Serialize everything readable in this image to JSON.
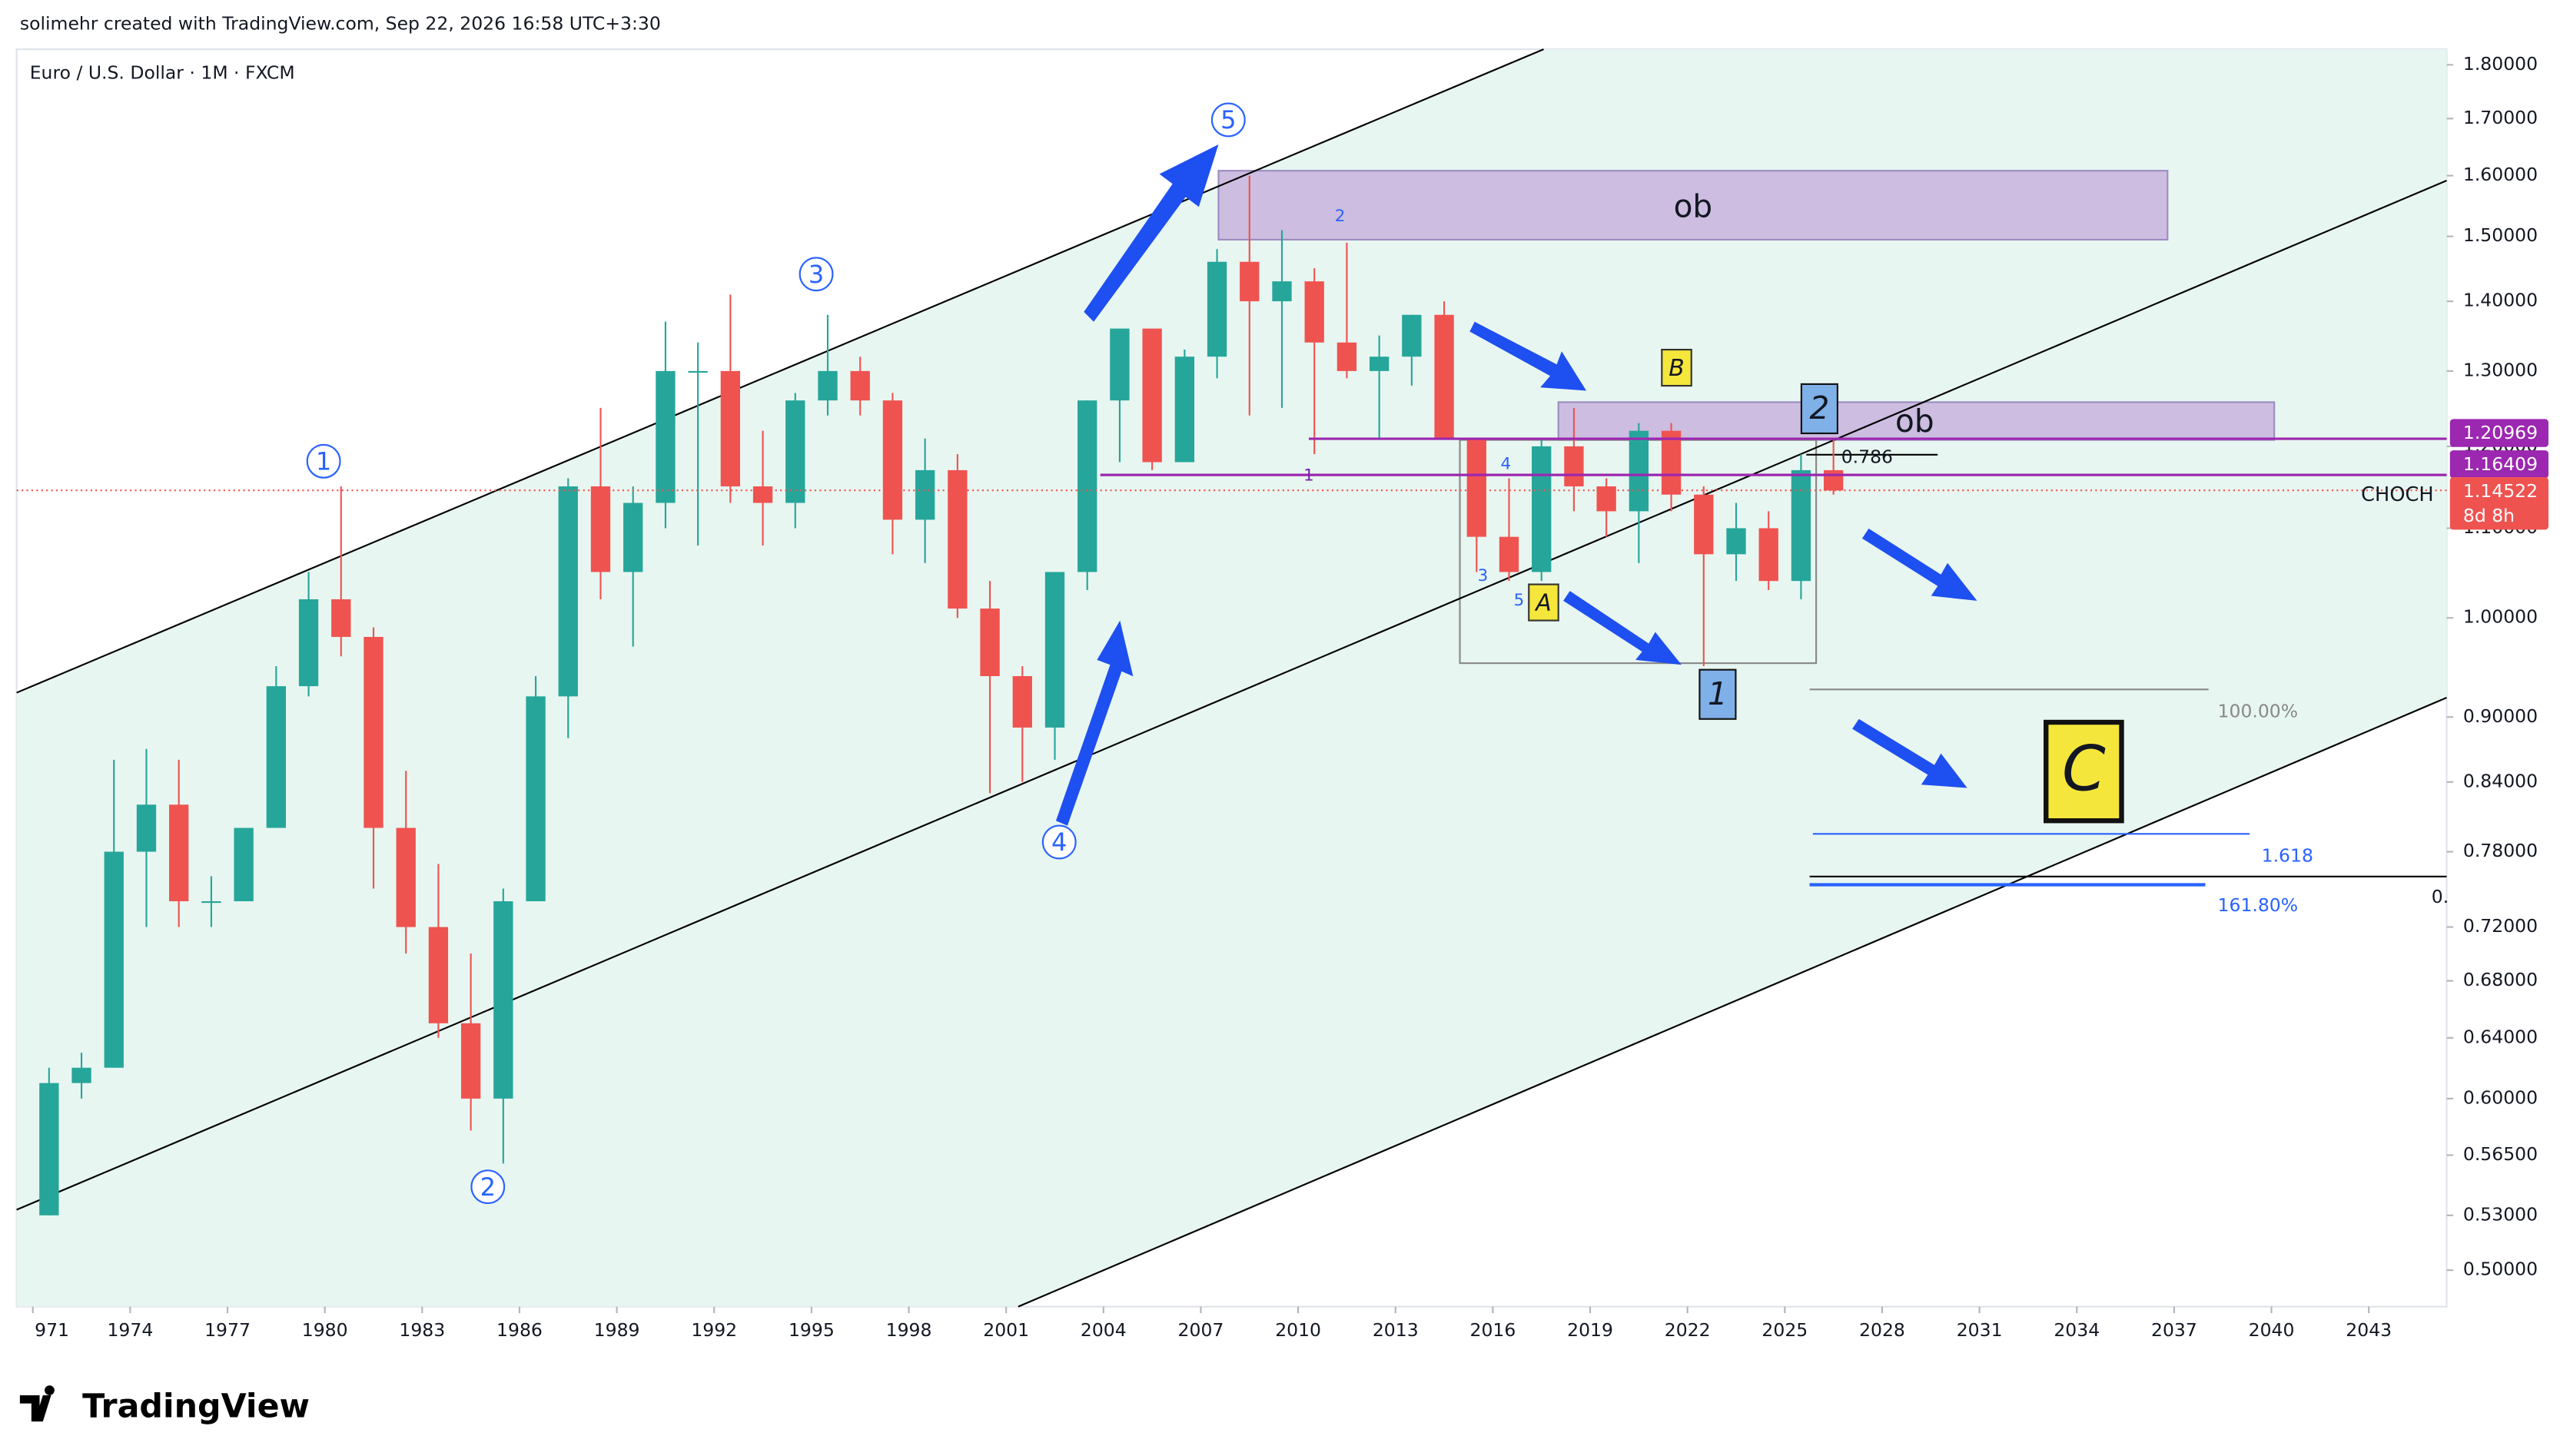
{
  "header": {
    "byline": "solimehr created with TradingView.com, Sep 22, 2026 16:58 UTC+3:30",
    "symbol": "Euro / U.S. Dollar · 1M · FXCM"
  },
  "brand": "TradingView",
  "chart_data": {
    "type": "candlestick",
    "log_scale": true,
    "up_color": "#26a69a",
    "down_color": "#ef5350",
    "x": [
      1971,
      1972,
      1973,
      1974,
      1975,
      1976,
      1977,
      1978,
      1979,
      1980,
      1981,
      1982,
      1983,
      1984,
      1985,
      1986,
      1987,
      1988,
      1989,
      1990,
      1991,
      1992,
      1993,
      1994,
      1995,
      1996,
      1997,
      1998,
      1999,
      2000,
      2001,
      2002,
      2003,
      2004,
      2005,
      2006,
      2007,
      2008,
      2009,
      2010,
      2011,
      2012,
      2013,
      2014,
      2015,
      2016,
      2017,
      2018,
      2019,
      2020,
      2021,
      2022,
      2023,
      2024,
      2025,
      2026
    ],
    "open": [
      0.53,
      0.61,
      0.62,
      0.78,
      0.82,
      0.74,
      0.74,
      0.8,
      0.93,
      1.02,
      0.98,
      0.8,
      0.72,
      0.65,
      0.6,
      0.74,
      0.92,
      1.15,
      1.05,
      1.13,
      1.3,
      1.3,
      1.15,
      1.13,
      1.26,
      1.3,
      1.26,
      1.11,
      1.17,
      1.01,
      0.94,
      0.89,
      1.05,
      1.26,
      1.36,
      1.18,
      1.32,
      1.46,
      1.4,
      1.43,
      1.34,
      1.3,
      1.32,
      1.38,
      1.21,
      1.09,
      1.05,
      1.2,
      1.15,
      1.12,
      1.22,
      1.14,
      1.07,
      1.1,
      1.04,
      1.17
    ],
    "high": [
      0.62,
      0.63,
      0.86,
      0.87,
      0.86,
      0.76,
      0.8,
      0.95,
      1.05,
      1.15,
      0.99,
      0.85,
      0.77,
      0.7,
      0.75,
      0.94,
      1.16,
      1.25,
      1.15,
      1.37,
      1.34,
      1.41,
      1.22,
      1.27,
      1.38,
      1.32,
      1.27,
      1.21,
      1.19,
      1.04,
      0.95,
      1.05,
      1.26,
      1.36,
      1.36,
      1.33,
      1.48,
      1.6,
      1.51,
      1.45,
      1.49,
      1.35,
      1.38,
      1.4,
      1.21,
      1.16,
      1.21,
      1.25,
      1.16,
      1.23,
      1.23,
      1.15,
      1.13,
      1.12,
      1.19,
      1.21
    ],
    "low": [
      0.53,
      0.6,
      0.62,
      0.72,
      0.72,
      0.72,
      0.74,
      0.8,
      0.92,
      0.96,
      0.75,
      0.7,
      0.64,
      0.58,
      0.56,
      0.74,
      0.88,
      1.02,
      0.97,
      1.1,
      1.08,
      1.13,
      1.08,
      1.1,
      1.24,
      1.24,
      1.07,
      1.06,
      1.0,
      0.83,
      0.84,
      0.86,
      1.03,
      1.18,
      1.17,
      1.18,
      1.29,
      1.24,
      1.25,
      1.19,
      1.29,
      1.21,
      1.28,
      1.21,
      1.05,
      1.04,
      1.04,
      1.12,
      1.09,
      1.06,
      1.12,
      0.95,
      1.04,
      1.03,
      1.02,
      1.14
    ],
    "close": [
      0.61,
      0.62,
      0.78,
      0.82,
      0.74,
      0.74,
      0.8,
      0.93,
      1.02,
      0.98,
      0.8,
      0.72,
      0.65,
      0.6,
      0.74,
      0.92,
      1.15,
      1.05,
      1.13,
      1.3,
      1.3,
      1.15,
      1.13,
      1.26,
      1.3,
      1.26,
      1.11,
      1.17,
      1.01,
      0.94,
      0.89,
      1.05,
      1.26,
      1.36,
      1.18,
      1.32,
      1.46,
      1.4,
      1.43,
      1.34,
      1.3,
      1.32,
      1.38,
      1.21,
      1.09,
      1.05,
      1.2,
      1.15,
      1.12,
      1.22,
      1.14,
      1.07,
      1.1,
      1.04,
      1.17,
      1.145
    ],
    "xlim": [
      1970.5,
      2045.4
    ],
    "ylim": [
      0.481,
      1.83
    ],
    "xticks": [
      {
        "value": 1971,
        "label": "971"
      },
      1974,
      1977,
      1980,
      1983,
      1986,
      1989,
      1992,
      1995,
      1998,
      2001,
      2004,
      2007,
      2010,
      2013,
      2016,
      2019,
      2022,
      2025,
      2028,
      2031,
      2034,
      2037,
      2040,
      2043
    ],
    "yticks": [
      {
        "value": 1.8,
        "label": "1.80000"
      },
      {
        "value": 1.7,
        "label": "1.70000"
      },
      {
        "value": 1.6,
        "label": "1.60000"
      },
      {
        "value": 1.5,
        "label": "1.50000"
      },
      {
        "value": 1.4,
        "label": "1.40000"
      },
      {
        "value": 1.3,
        "label": "1.30000"
      },
      {
        "value": 1.2,
        "label": "1.20000"
      },
      {
        "value": 1.1,
        "label": "1.10000"
      },
      {
        "value": 1,
        "label": "1.00000"
      },
      {
        "value": 0.9,
        "label": "0.90000"
      },
      {
        "value": 0.84,
        "label": "0.84000"
      },
      {
        "value": 0.78,
        "label": "0.78000"
      },
      {
        "value": 0.72,
        "label": "0.72000"
      },
      {
        "value": 0.68,
        "label": "0.68000"
      },
      {
        "value": 0.64,
        "label": "0.64000"
      },
      {
        "value": 0.6,
        "label": "0.60000"
      },
      {
        "value": 0.565,
        "label": "0.56500"
      },
      {
        "value": 0.53,
        "label": "0.53000"
      },
      {
        "value": 0.5,
        "label": "0.50000"
      }
    ],
    "price_labels": [
      {
        "value": 1.20969,
        "label": "1.20969"
      },
      {
        "value": 1.16409,
        "label": "1.16409"
      },
      {
        "value": 1.14522,
        "label": "1.14522"
      }
    ],
    "countdown": "8d 8h",
    "annotations": [
      "1",
      "2",
      "3",
      "4",
      "5",
      "2",
      "1",
      "4",
      "3",
      "5",
      "ob",
      "ob",
      "B",
      "A",
      "2",
      "1",
      "C",
      "0.786",
      "100.00%",
      "1.618",
      "161.80%",
      "0.",
      "CHOCH"
    ]
  }
}
